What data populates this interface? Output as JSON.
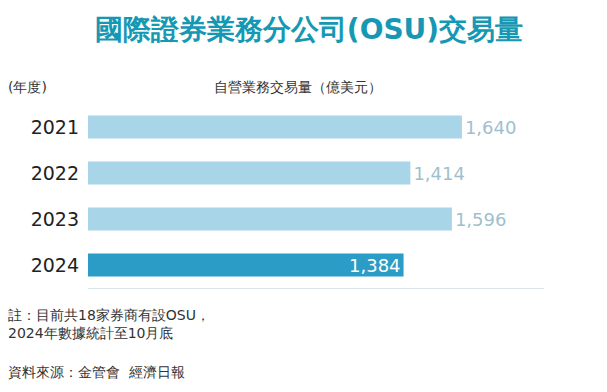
{
  "chart_data": {
    "type": "bar",
    "orientation": "horizontal",
    "title": "國際證券業務分公司(OSU)交易量",
    "subtitle": "自營業務交易量（億美元）",
    "y_label": "(年度)",
    "categories": [
      "2021",
      "2022",
      "2023",
      "2024"
    ],
    "values": [
      1640,
      1414,
      1596,
      1384
    ],
    "value_labels": [
      "1,640",
      "1,414",
      "1,596",
      "1,384"
    ],
    "colors": [
      "#a9d5e8",
      "#a9d5e8",
      "#a9d5e8",
      "#2b9cc6"
    ],
    "data_labels": true,
    "tick_labels": "y",
    "grid": false,
    "xlim": [
      0,
      2000
    ],
    "note": [
      "註：目前共18家券商有設OSU，",
      "2024年數據統計至10月底"
    ],
    "source": [
      "資料來源：金管會",
      "經濟日報"
    ]
  }
}
